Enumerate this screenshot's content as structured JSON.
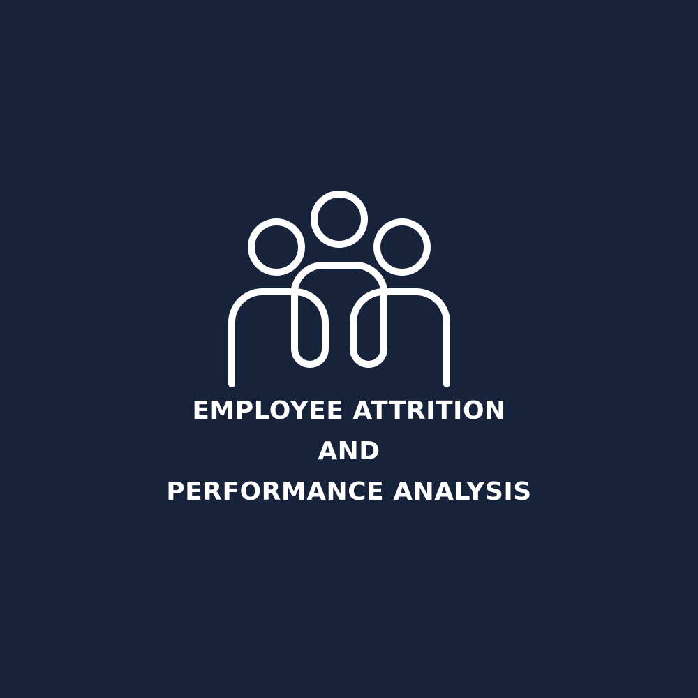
{
  "background_color": "#17223b",
  "foreground_color": "#ffffff",
  "logo": {
    "icon": "people-group-icon"
  },
  "title": {
    "line1": "EMPLOYEE ATTRITION",
    "line2": "AND",
    "line3": "PERFORMANCE ANALYSIS"
  }
}
